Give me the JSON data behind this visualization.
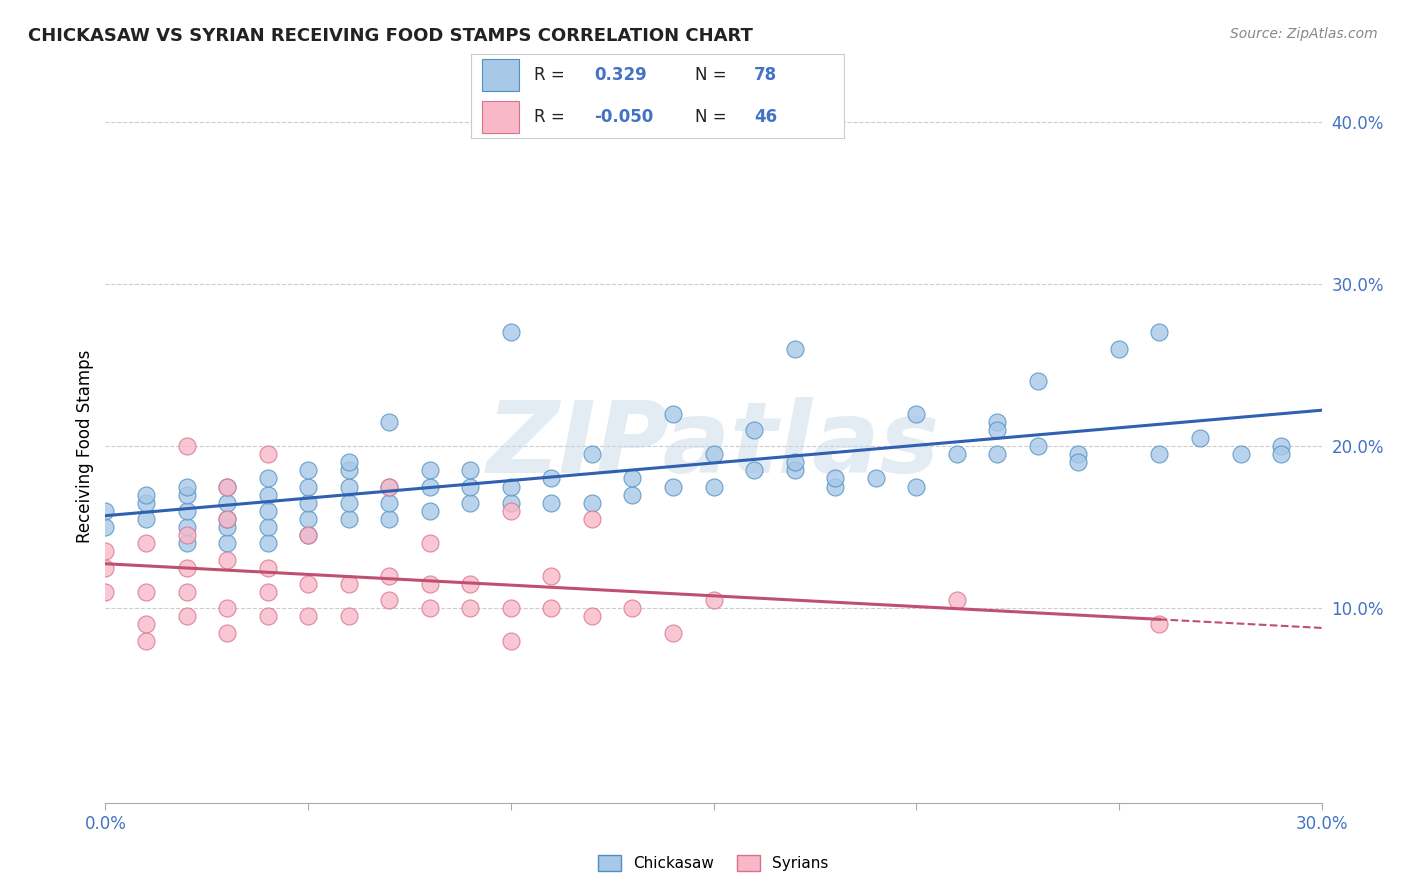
{
  "title": "CHICKASAW VS SYRIAN RECEIVING FOOD STAMPS CORRELATION CHART",
  "source": "Source: ZipAtlas.com",
  "ylabel": "Receiving Food Stamps",
  "xlim": [
    0.0,
    0.3
  ],
  "ylim": [
    -0.02,
    0.42
  ],
  "x_ticks": [
    0.0,
    0.05,
    0.1,
    0.15,
    0.2,
    0.25,
    0.3
  ],
  "x_tick_labels": [
    "0.0%",
    "",
    "",
    "",
    "",
    "",
    "30.0%"
  ],
  "y_ticks_right": [
    0.1,
    0.2,
    0.3,
    0.4
  ],
  "y_tick_labels_right": [
    "10.0%",
    "20.0%",
    "30.0%",
    "40.0%"
  ],
  "chickasaw_color": "#a8c8e8",
  "chickasaw_edge": "#5090c0",
  "syrian_color": "#f8b8c8",
  "syrian_edge": "#d87090",
  "trendline_chickasaw": "#3060b0",
  "trendline_syrian": "#c05070",
  "legend_R_chickasaw": "0.329",
  "legend_N_chickasaw": "78",
  "legend_R_syrian": "-0.050",
  "legend_N_syrian": "46",
  "watermark": "ZIPatlas",
  "background_color": "#ffffff",
  "grid_color": "#cccccc",
  "chickasaw_x": [
    0.0,
    0.0,
    0.01,
    0.01,
    0.01,
    0.02,
    0.02,
    0.02,
    0.02,
    0.02,
    0.03,
    0.03,
    0.03,
    0.03,
    0.03,
    0.04,
    0.04,
    0.04,
    0.04,
    0.04,
    0.05,
    0.05,
    0.05,
    0.05,
    0.05,
    0.06,
    0.06,
    0.06,
    0.06,
    0.06,
    0.07,
    0.07,
    0.07,
    0.07,
    0.08,
    0.08,
    0.08,
    0.09,
    0.09,
    0.09,
    0.1,
    0.1,
    0.1,
    0.11,
    0.11,
    0.12,
    0.12,
    0.13,
    0.13,
    0.14,
    0.14,
    0.15,
    0.15,
    0.16,
    0.16,
    0.17,
    0.18,
    0.19,
    0.2,
    0.21,
    0.22,
    0.23,
    0.24,
    0.25,
    0.26,
    0.27,
    0.28,
    0.29,
    0.17,
    0.22,
    0.26,
    0.23,
    0.18,
    0.2,
    0.17,
    0.22,
    0.24,
    0.29
  ],
  "chickasaw_y": [
    0.15,
    0.16,
    0.155,
    0.165,
    0.17,
    0.14,
    0.15,
    0.16,
    0.17,
    0.175,
    0.14,
    0.15,
    0.155,
    0.165,
    0.175,
    0.14,
    0.15,
    0.16,
    0.17,
    0.18,
    0.145,
    0.155,
    0.165,
    0.175,
    0.185,
    0.155,
    0.165,
    0.175,
    0.185,
    0.19,
    0.155,
    0.165,
    0.175,
    0.215,
    0.16,
    0.175,
    0.185,
    0.165,
    0.175,
    0.185,
    0.165,
    0.175,
    0.27,
    0.165,
    0.18,
    0.165,
    0.195,
    0.17,
    0.18,
    0.175,
    0.22,
    0.175,
    0.195,
    0.185,
    0.21,
    0.185,
    0.175,
    0.18,
    0.175,
    0.195,
    0.195,
    0.2,
    0.195,
    0.26,
    0.195,
    0.205,
    0.195,
    0.2,
    0.26,
    0.215,
    0.27,
    0.24,
    0.18,
    0.22,
    0.19,
    0.21,
    0.19,
    0.195
  ],
  "syrian_x": [
    0.0,
    0.0,
    0.0,
    0.01,
    0.01,
    0.01,
    0.01,
    0.02,
    0.02,
    0.02,
    0.02,
    0.02,
    0.03,
    0.03,
    0.03,
    0.03,
    0.03,
    0.04,
    0.04,
    0.04,
    0.04,
    0.05,
    0.05,
    0.05,
    0.06,
    0.06,
    0.07,
    0.07,
    0.07,
    0.08,
    0.08,
    0.08,
    0.09,
    0.09,
    0.1,
    0.1,
    0.1,
    0.11,
    0.11,
    0.12,
    0.12,
    0.13,
    0.14,
    0.15,
    0.21,
    0.26
  ],
  "syrian_y": [
    0.11,
    0.125,
    0.135,
    0.08,
    0.09,
    0.11,
    0.14,
    0.095,
    0.11,
    0.125,
    0.145,
    0.2,
    0.085,
    0.1,
    0.13,
    0.155,
    0.175,
    0.095,
    0.11,
    0.125,
    0.195,
    0.095,
    0.115,
    0.145,
    0.095,
    0.115,
    0.105,
    0.12,
    0.175,
    0.1,
    0.115,
    0.14,
    0.1,
    0.115,
    0.08,
    0.1,
    0.16,
    0.1,
    0.12,
    0.095,
    0.155,
    0.1,
    0.085,
    0.105,
    0.105,
    0.09
  ]
}
